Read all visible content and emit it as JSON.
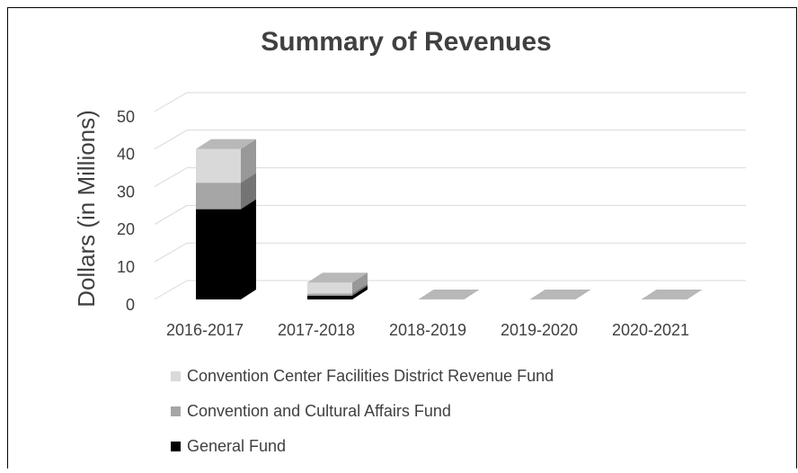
{
  "chart_data": {
    "type": "bar3d_stacked",
    "title": "Summary of Revenues",
    "y_label": "Dollars (in Millions)",
    "categories": [
      "2016-2017",
      "2017-2018",
      "2018-2019",
      "2019-2020",
      "2020-2021"
    ],
    "series": [
      {
        "name": "General Fund",
        "color": "#000000",
        "values": [
          24,
          1,
          0,
          0,
          0
        ]
      },
      {
        "name": "Convention and Cultural Affairs Fund",
        "color": "#a6a6a6",
        "values": [
          7,
          0.5,
          0,
          0,
          0
        ]
      },
      {
        "name": "Convention Center Facilities District Revenue Fund",
        "color": "#d9d9d9",
        "values": [
          9,
          3,
          0,
          0,
          0
        ]
      }
    ],
    "ylim": [
      0,
      50
    ],
    "yticks": [
      0,
      10,
      20,
      30,
      40,
      50
    ],
    "grid": true,
    "legend": "bottom"
  }
}
